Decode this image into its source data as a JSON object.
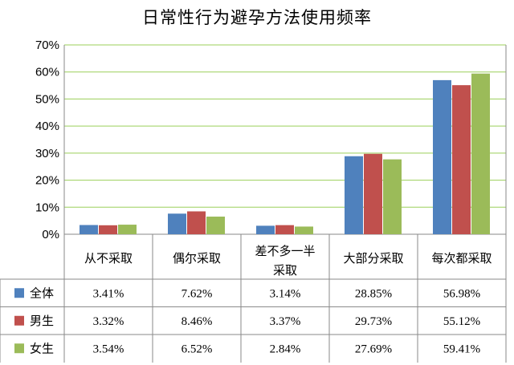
{
  "chart_data": {
    "type": "bar",
    "title": "日常性行为避孕方法使用频率",
    "categories": [
      "从不采取",
      "偶尔采取",
      "差不多一半采取",
      "大部分采取",
      "每次都采取"
    ],
    "category_lines": [
      [
        "从不采取"
      ],
      [
        "偶尔采取"
      ],
      [
        "差不多一半",
        "采取"
      ],
      [
        "大部分采取"
      ],
      [
        "每次都采取"
      ]
    ],
    "yticks": [
      "0%",
      "10%",
      "20%",
      "30%",
      "40%",
      "50%",
      "60%",
      "70%"
    ],
    "ylim": [
      0,
      70
    ],
    "grid": true,
    "legend": "data-table",
    "series": [
      {
        "name": "全体",
        "color": "#4f81bd",
        "values": [
          3.41,
          7.62,
          3.14,
          28.85,
          56.98
        ],
        "labels": [
          "3.41%",
          "7.62%",
          "3.14%",
          "28.85%",
          "56.98%"
        ]
      },
      {
        "name": "男生",
        "color": "#c0504d",
        "values": [
          3.32,
          8.46,
          3.37,
          29.73,
          55.12
        ],
        "labels": [
          "3.32%",
          "8.46%",
          "3.37%",
          "29.73%",
          "55.12%"
        ]
      },
      {
        "name": "女生",
        "color": "#9bbb59",
        "values": [
          3.54,
          6.52,
          2.84,
          27.69,
          59.41
        ],
        "labels": [
          "3.54%",
          "6.52%",
          "2.84%",
          "27.69%",
          "59.41%"
        ]
      }
    ]
  }
}
